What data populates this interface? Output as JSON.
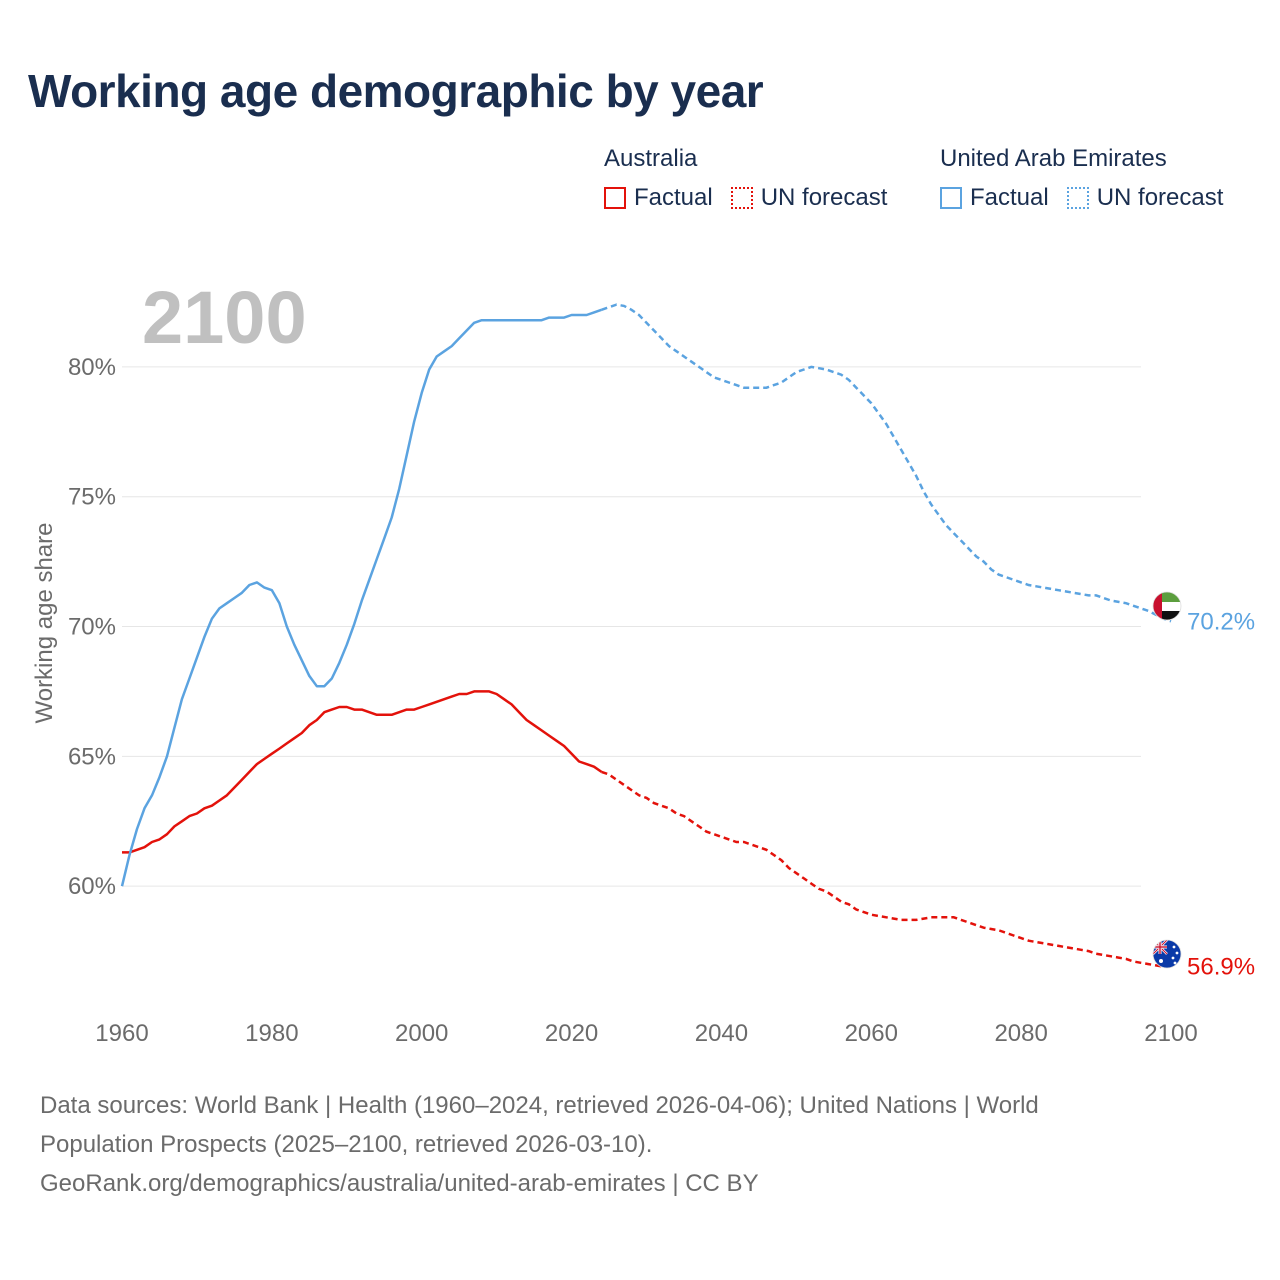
{
  "title": "Working age demographic by year",
  "legend": {
    "australia": {
      "country": "Australia",
      "factual": "Factual",
      "forecast": "UN forecast",
      "color": "#e3120b"
    },
    "uae": {
      "country": "United Arab Emirates",
      "factual": "Factual",
      "forecast": "UN forecast",
      "color": "#5ba3e0"
    }
  },
  "footer": {
    "line1": "Data sources: World Bank | Health (1960–2024, retrieved 2026-04-06); United Nations | World",
    "line2": "Population Prospects (2025–2100, retrieved 2026-03-10).",
    "line3": "GeoRank.org/demographics/australia/united-arab-emirates | CC BY"
  },
  "chart_data": {
    "type": "line",
    "title": "Working age demographic by year",
    "year_label": "2100",
    "xlabel": "",
    "ylabel": "Working age share",
    "xlim": [
      1960,
      2100
    ],
    "ylim": [
      55.5,
      83
    ],
    "x_ticks": [
      1960,
      1980,
      2000,
      2020,
      2040,
      2060,
      2080,
      2100
    ],
    "x_tick_labels": [
      "1960",
      "1980",
      "2000",
      "2020",
      "2040",
      "2060",
      "2080",
      "2100"
    ],
    "y_ticks": [
      60,
      65,
      70,
      75,
      80
    ],
    "y_tick_labels": [
      "60%",
      "65%",
      "70%",
      "75%",
      "80%"
    ],
    "grid": true,
    "factual_end_year": 2024,
    "series": [
      {
        "name": "Australia",
        "color": "#e3120b",
        "end_label": "56.9%",
        "flag": "australia-flag",
        "points": [
          [
            1960,
            61.3
          ],
          [
            1961,
            61.3
          ],
          [
            1962,
            61.4
          ],
          [
            1963,
            61.5
          ],
          [
            1964,
            61.7
          ],
          [
            1965,
            61.8
          ],
          [
            1966,
            62.0
          ],
          [
            1967,
            62.3
          ],
          [
            1968,
            62.5
          ],
          [
            1969,
            62.7
          ],
          [
            1970,
            62.8
          ],
          [
            1971,
            63.0
          ],
          [
            1972,
            63.1
          ],
          [
            1973,
            63.3
          ],
          [
            1974,
            63.5
          ],
          [
            1975,
            63.8
          ],
          [
            1976,
            64.1
          ],
          [
            1977,
            64.4
          ],
          [
            1978,
            64.7
          ],
          [
            1979,
            64.9
          ],
          [
            1980,
            65.1
          ],
          [
            1981,
            65.3
          ],
          [
            1982,
            65.5
          ],
          [
            1983,
            65.7
          ],
          [
            1984,
            65.9
          ],
          [
            1985,
            66.2
          ],
          [
            1986,
            66.4
          ],
          [
            1987,
            66.7
          ],
          [
            1988,
            66.8
          ],
          [
            1989,
            66.9
          ],
          [
            1990,
            66.9
          ],
          [
            1991,
            66.8
          ],
          [
            1992,
            66.8
          ],
          [
            1993,
            66.7
          ],
          [
            1994,
            66.6
          ],
          [
            1995,
            66.6
          ],
          [
            1996,
            66.6
          ],
          [
            1997,
            66.7
          ],
          [
            1998,
            66.8
          ],
          [
            1999,
            66.8
          ],
          [
            2000,
            66.9
          ],
          [
            2001,
            67.0
          ],
          [
            2002,
            67.1
          ],
          [
            2003,
            67.2
          ],
          [
            2004,
            67.3
          ],
          [
            2005,
            67.4
          ],
          [
            2006,
            67.4
          ],
          [
            2007,
            67.5
          ],
          [
            2008,
            67.5
          ],
          [
            2009,
            67.5
          ],
          [
            2010,
            67.4
          ],
          [
            2011,
            67.2
          ],
          [
            2012,
            67.0
          ],
          [
            2013,
            66.7
          ],
          [
            2014,
            66.4
          ],
          [
            2015,
            66.2
          ],
          [
            2016,
            66.0
          ],
          [
            2017,
            65.8
          ],
          [
            2018,
            65.6
          ],
          [
            2019,
            65.4
          ],
          [
            2020,
            65.1
          ],
          [
            2021,
            64.8
          ],
          [
            2022,
            64.7
          ],
          [
            2023,
            64.6
          ],
          [
            2024,
            64.4
          ],
          [
            2025,
            64.3
          ],
          [
            2026,
            64.1
          ],
          [
            2027,
            63.9
          ],
          [
            2028,
            63.7
          ],
          [
            2029,
            63.5
          ],
          [
            2030,
            63.4
          ],
          [
            2031,
            63.2
          ],
          [
            2032,
            63.1
          ],
          [
            2033,
            63.0
          ],
          [
            2034,
            62.8
          ],
          [
            2035,
            62.7
          ],
          [
            2036,
            62.5
          ],
          [
            2037,
            62.3
          ],
          [
            2038,
            62.1
          ],
          [
            2039,
            62.0
          ],
          [
            2040,
            61.9
          ],
          [
            2041,
            61.8
          ],
          [
            2042,
            61.7
          ],
          [
            2043,
            61.7
          ],
          [
            2044,
            61.6
          ],
          [
            2045,
            61.5
          ],
          [
            2046,
            61.4
          ],
          [
            2047,
            61.2
          ],
          [
            2048,
            61.0
          ],
          [
            2049,
            60.7
          ],
          [
            2050,
            60.5
          ],
          [
            2051,
            60.3
          ],
          [
            2052,
            60.1
          ],
          [
            2053,
            59.9
          ],
          [
            2054,
            59.8
          ],
          [
            2055,
            59.6
          ],
          [
            2056,
            59.4
          ],
          [
            2057,
            59.3
          ],
          [
            2058,
            59.1
          ],
          [
            2059,
            59.0
          ],
          [
            2060,
            58.9
          ],
          [
            2061,
            58.85
          ],
          [
            2062,
            58.8
          ],
          [
            2063,
            58.75
          ],
          [
            2064,
            58.7
          ],
          [
            2065,
            58.7
          ],
          [
            2066,
            58.7
          ],
          [
            2067,
            58.75
          ],
          [
            2068,
            58.8
          ],
          [
            2069,
            58.8
          ],
          [
            2070,
            58.8
          ],
          [
            2071,
            58.8
          ],
          [
            2072,
            58.7
          ],
          [
            2073,
            58.6
          ],
          [
            2074,
            58.5
          ],
          [
            2075,
            58.4
          ],
          [
            2076,
            58.35
          ],
          [
            2077,
            58.3
          ],
          [
            2078,
            58.2
          ],
          [
            2079,
            58.1
          ],
          [
            2080,
            58.0
          ],
          [
            2081,
            57.9
          ],
          [
            2082,
            57.85
          ],
          [
            2083,
            57.8
          ],
          [
            2084,
            57.75
          ],
          [
            2085,
            57.7
          ],
          [
            2086,
            57.65
          ],
          [
            2087,
            57.6
          ],
          [
            2088,
            57.55
          ],
          [
            2089,
            57.5
          ],
          [
            2090,
            57.4
          ],
          [
            2091,
            57.35
          ],
          [
            2092,
            57.3
          ],
          [
            2093,
            57.25
          ],
          [
            2094,
            57.2
          ],
          [
            2095,
            57.1
          ],
          [
            2096,
            57.05
          ],
          [
            2097,
            57.0
          ],
          [
            2098,
            56.95
          ],
          [
            2099,
            56.9
          ],
          [
            2100,
            56.9
          ]
        ]
      },
      {
        "name": "United Arab Emirates",
        "color": "#5ba3e0",
        "end_label": "70.2%",
        "flag": "uae-flag",
        "points": [
          [
            1960,
            60.0
          ],
          [
            1961,
            61.2
          ],
          [
            1962,
            62.2
          ],
          [
            1963,
            63.0
          ],
          [
            1964,
            63.5
          ],
          [
            1965,
            64.2
          ],
          [
            1966,
            65.0
          ],
          [
            1967,
            66.1
          ],
          [
            1968,
            67.2
          ],
          [
            1969,
            68.0
          ],
          [
            1970,
            68.8
          ],
          [
            1971,
            69.6
          ],
          [
            1972,
            70.3
          ],
          [
            1973,
            70.7
          ],
          [
            1974,
            70.9
          ],
          [
            1975,
            71.1
          ],
          [
            1976,
            71.3
          ],
          [
            1977,
            71.6
          ],
          [
            1978,
            71.7
          ],
          [
            1979,
            71.5
          ],
          [
            1980,
            71.4
          ],
          [
            1981,
            70.9
          ],
          [
            1982,
            70.0
          ],
          [
            1983,
            69.3
          ],
          [
            1984,
            68.7
          ],
          [
            1985,
            68.1
          ],
          [
            1986,
            67.7
          ],
          [
            1987,
            67.7
          ],
          [
            1988,
            68.0
          ],
          [
            1989,
            68.6
          ],
          [
            1990,
            69.3
          ],
          [
            1991,
            70.1
          ],
          [
            1992,
            71.0
          ],
          [
            1993,
            71.8
          ],
          [
            1994,
            72.6
          ],
          [
            1995,
            73.4
          ],
          [
            1996,
            74.2
          ],
          [
            1997,
            75.3
          ],
          [
            1998,
            76.6
          ],
          [
            1999,
            77.9
          ],
          [
            2000,
            79.0
          ],
          [
            2001,
            79.9
          ],
          [
            2002,
            80.4
          ],
          [
            2003,
            80.6
          ],
          [
            2004,
            80.8
          ],
          [
            2005,
            81.1
          ],
          [
            2006,
            81.4
          ],
          [
            2007,
            81.7
          ],
          [
            2008,
            81.8
          ],
          [
            2009,
            81.8
          ],
          [
            2010,
            81.8
          ],
          [
            2011,
            81.8
          ],
          [
            2012,
            81.8
          ],
          [
            2013,
            81.8
          ],
          [
            2014,
            81.8
          ],
          [
            2015,
            81.8
          ],
          [
            2016,
            81.8
          ],
          [
            2017,
            81.9
          ],
          [
            2018,
            81.9
          ],
          [
            2019,
            81.9
          ],
          [
            2020,
            82.0
          ],
          [
            2021,
            82.0
          ],
          [
            2022,
            82.0
          ],
          [
            2023,
            82.1
          ],
          [
            2024,
            82.2
          ],
          [
            2025,
            82.3
          ],
          [
            2026,
            82.4
          ],
          [
            2027,
            82.35
          ],
          [
            2028,
            82.2
          ],
          [
            2029,
            82.0
          ],
          [
            2030,
            81.7
          ],
          [
            2031,
            81.4
          ],
          [
            2032,
            81.1
          ],
          [
            2033,
            80.8
          ],
          [
            2034,
            80.6
          ],
          [
            2035,
            80.4
          ],
          [
            2036,
            80.2
          ],
          [
            2037,
            80.0
          ],
          [
            2038,
            79.8
          ],
          [
            2039,
            79.6
          ],
          [
            2040,
            79.5
          ],
          [
            2041,
            79.4
          ],
          [
            2042,
            79.3
          ],
          [
            2043,
            79.2
          ],
          [
            2044,
            79.2
          ],
          [
            2045,
            79.2
          ],
          [
            2046,
            79.2
          ],
          [
            2047,
            79.3
          ],
          [
            2048,
            79.4
          ],
          [
            2049,
            79.6
          ],
          [
            2050,
            79.8
          ],
          [
            2051,
            79.9
          ],
          [
            2052,
            80.0
          ],
          [
            2053,
            79.95
          ],
          [
            2054,
            79.9
          ],
          [
            2055,
            79.8
          ],
          [
            2056,
            79.7
          ],
          [
            2057,
            79.5
          ],
          [
            2058,
            79.2
          ],
          [
            2059,
            78.9
          ],
          [
            2060,
            78.6
          ],
          [
            2061,
            78.2
          ],
          [
            2062,
            77.8
          ],
          [
            2063,
            77.3
          ],
          [
            2064,
            76.8
          ],
          [
            2065,
            76.3
          ],
          [
            2066,
            75.8
          ],
          [
            2067,
            75.2
          ],
          [
            2068,
            74.7
          ],
          [
            2069,
            74.3
          ],
          [
            2070,
            73.9
          ],
          [
            2071,
            73.6
          ],
          [
            2072,
            73.3
          ],
          [
            2073,
            73.0
          ],
          [
            2074,
            72.7
          ],
          [
            2075,
            72.5
          ],
          [
            2076,
            72.2
          ],
          [
            2077,
            72.0
          ],
          [
            2078,
            71.9
          ],
          [
            2079,
            71.8
          ],
          [
            2080,
            71.7
          ],
          [
            2081,
            71.6
          ],
          [
            2082,
            71.55
          ],
          [
            2083,
            71.5
          ],
          [
            2084,
            71.45
          ],
          [
            2085,
            71.4
          ],
          [
            2086,
            71.35
          ],
          [
            2087,
            71.3
          ],
          [
            2088,
            71.25
          ],
          [
            2089,
            71.2
          ],
          [
            2090,
            71.2
          ],
          [
            2091,
            71.1
          ],
          [
            2092,
            71.0
          ],
          [
            2093,
            70.95
          ],
          [
            2094,
            70.9
          ],
          [
            2095,
            70.8
          ],
          [
            2096,
            70.7
          ],
          [
            2097,
            70.6
          ],
          [
            2098,
            70.45
          ],
          [
            2099,
            70.3
          ],
          [
            2100,
            70.2
          ]
        ]
      }
    ]
  }
}
